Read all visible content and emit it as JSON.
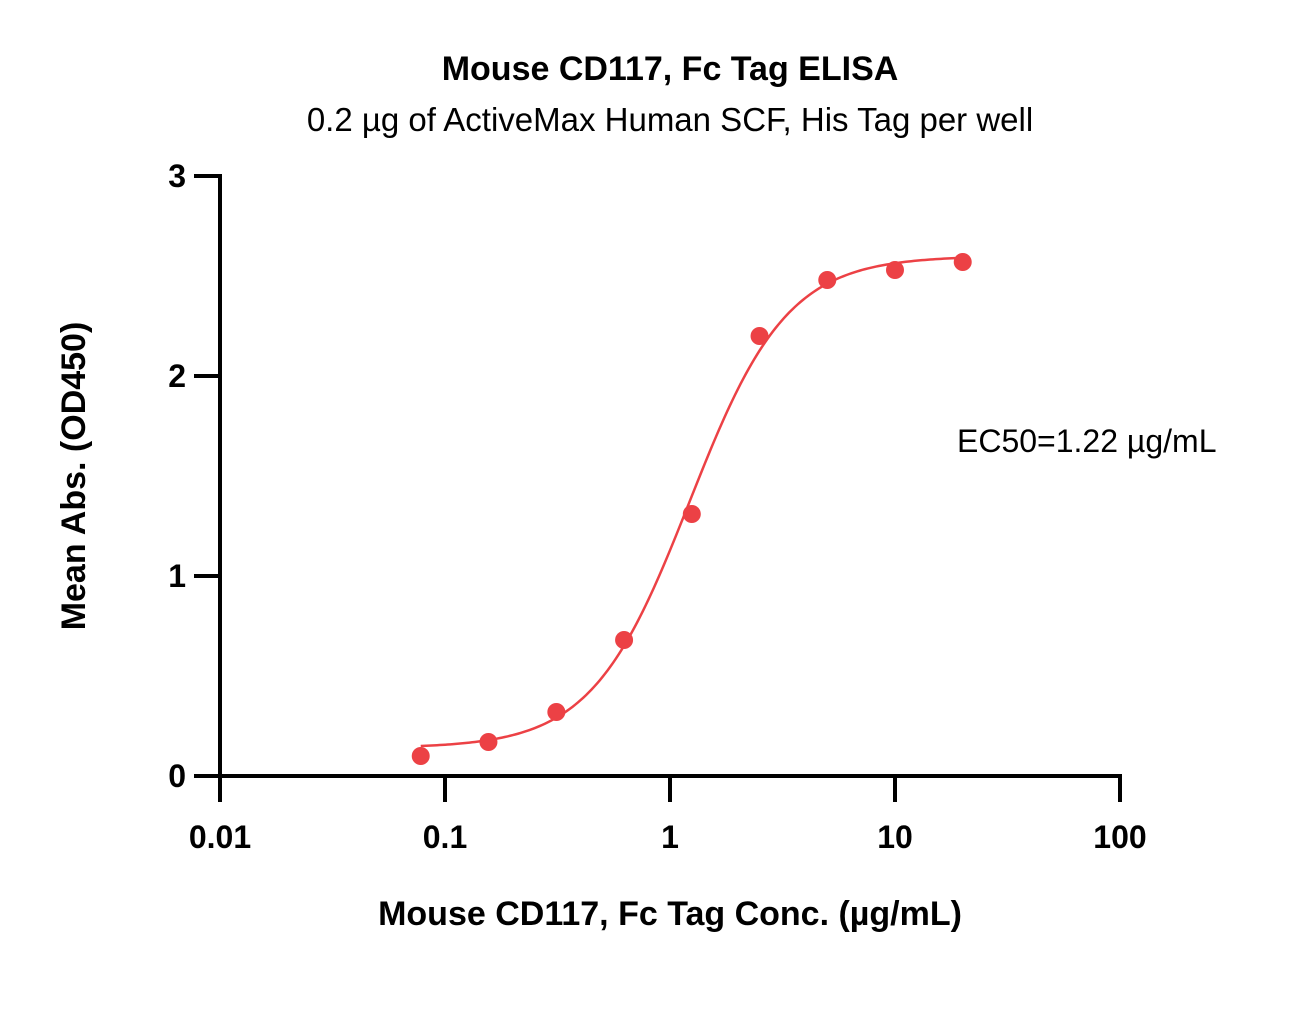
{
  "chart_data": {
    "type": "scatter",
    "title": "Mouse CD117, Fc Tag ELISA",
    "subtitle": "0.2 µg of ActiveMax Human SCF, His Tag per well",
    "xlabel": "Mouse CD117, Fc Tag Conc. (µg/mL)",
    "ylabel": "Mean Abs. (OD450)",
    "xscale": "log",
    "xlim": [
      0.01,
      100
    ],
    "ylim": [
      0,
      3
    ],
    "xticks": [
      0.01,
      0.1,
      1,
      10,
      100
    ],
    "xtick_labels": [
      "0.01",
      "0.1",
      "1",
      "10",
      "100"
    ],
    "yticks": [
      0,
      1,
      2,
      3
    ],
    "ytick_labels": [
      "0",
      "1",
      "2",
      "3"
    ],
    "grid": false,
    "series": [
      {
        "x": [
          0.078,
          0.156,
          0.3125,
          0.625,
          1.25,
          2.5,
          5,
          10,
          20
        ],
        "y": [
          0.1,
          0.17,
          0.32,
          0.68,
          1.31,
          2.2,
          2.48,
          2.53,
          2.57
        ],
        "color": "#ec4145",
        "fit": "4PL"
      }
    ],
    "fit_params": {
      "bottom": 0.14,
      "top": 2.6,
      "ec50": 1.22,
      "hill": 2.0
    },
    "annotations": [
      {
        "text": "EC50=1.22 µg/mL"
      }
    ]
  }
}
